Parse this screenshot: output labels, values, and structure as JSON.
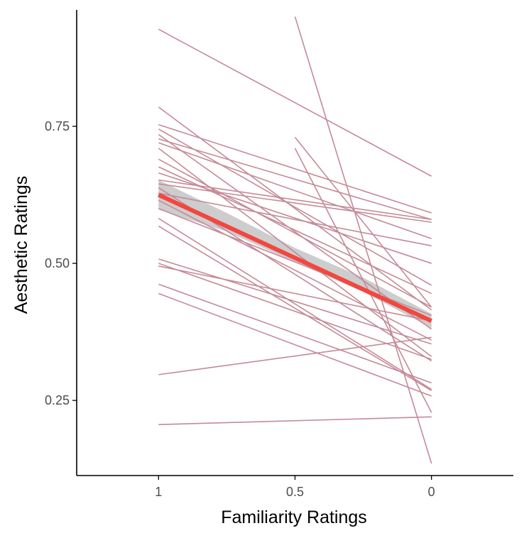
{
  "chart_data": {
    "type": "line",
    "title": "",
    "xlabel": "Familiarity Ratings",
    "ylabel": "Aesthetic Ratings",
    "x_reversed": true,
    "xlim": [
      1.3,
      -0.3
    ],
    "ylim": [
      0.113,
      0.97
    ],
    "x_ticks": [
      {
        "value": 1,
        "label": "1"
      },
      {
        "value": 0.5,
        "label": "0.5"
      },
      {
        "value": 0,
        "label": "0"
      }
    ],
    "y_ticks": [
      {
        "value": 0.25,
        "label": "0.25"
      },
      {
        "value": 0.5,
        "label": "0.50"
      },
      {
        "value": 0.75,
        "label": "0.75"
      }
    ],
    "grid": false,
    "legend": "none",
    "colors": {
      "participant_line": "#c48a98",
      "fit_line": "#f2473f",
      "confidence_band": "#b8b8b8",
      "axis": "#000000",
      "tick_label": "#4d4d4d"
    },
    "participants": [
      {
        "x": [
          1,
          0
        ],
        "y": [
          0.927,
          0.659
        ]
      },
      {
        "x": [
          0.5,
          0
        ],
        "y": [
          0.95,
          0.135
        ]
      },
      {
        "x": [
          1,
          0
        ],
        "y": [
          0.785,
          0.415
        ]
      },
      {
        "x": [
          1,
          0
        ],
        "y": [
          0.753,
          0.592
        ]
      },
      {
        "x": [
          1,
          0
        ],
        "y": [
          0.745,
          0.46
        ]
      },
      {
        "x": [
          1,
          0
        ],
        "y": [
          0.735,
          0.38
        ]
      },
      {
        "x": [
          1,
          0
        ],
        "y": [
          0.727,
          0.58
        ]
      },
      {
        "x": [
          1,
          0
        ],
        "y": [
          0.72,
          0.545
        ]
      },
      {
        "x": [
          1,
          0
        ],
        "y": [
          0.71,
          0.33
        ]
      },
      {
        "x": [
          1,
          0
        ],
        "y": [
          0.69,
          0.42
        ]
      },
      {
        "x": [
          1,
          0
        ],
        "y": [
          0.676,
          0.445
        ]
      },
      {
        "x": [
          1,
          0
        ],
        "y": [
          0.665,
          0.5
        ]
      },
      {
        "x": [
          1,
          0
        ],
        "y": [
          0.652,
          0.58
        ]
      },
      {
        "x": [
          1,
          0
        ],
        "y": [
          0.645,
          0.575
        ]
      },
      {
        "x": [
          1,
          0
        ],
        "y": [
          0.638,
          0.322
        ]
      },
      {
        "x": [
          1,
          0
        ],
        "y": [
          0.628,
          0.532
        ]
      },
      {
        "x": [
          1,
          0
        ],
        "y": [
          0.615,
          0.36
        ]
      },
      {
        "x": [
          1,
          0
        ],
        "y": [
          0.6,
          0.405
        ]
      },
      {
        "x": [
          1,
          0
        ],
        "y": [
          0.582,
          0.27
        ]
      },
      {
        "x": [
          1,
          0
        ],
        "y": [
          0.568,
          0.268
        ]
      },
      {
        "x": [
          1,
          0
        ],
        "y": [
          0.508,
          0.353
        ]
      },
      {
        "x": [
          1,
          0
        ],
        "y": [
          0.5,
          0.325
        ]
      },
      {
        "x": [
          1,
          0
        ],
        "y": [
          0.495,
          0.395
        ]
      },
      {
        "x": [
          1,
          0
        ],
        "y": [
          0.462,
          0.282
        ]
      },
      {
        "x": [
          1,
          0
        ],
        "y": [
          0.445,
          0.258
        ]
      },
      {
        "x": [
          1,
          0
        ],
        "y": [
          0.297,
          0.365
        ]
      },
      {
        "x": [
          1,
          0
        ],
        "y": [
          0.206,
          0.22
        ]
      },
      {
        "x": [
          0.5,
          0
        ],
        "y": [
          0.73,
          0.42
        ]
      },
      {
        "x": [
          0.5,
          0
        ],
        "y": [
          0.71,
          0.228
        ]
      }
    ],
    "fit": {
      "x": [
        1,
        0
      ],
      "y": [
        0.625,
        0.395
      ]
    },
    "confidence_band": {
      "x": [
        1,
        0.75,
        0.5,
        0.25,
        0
      ],
      "lower": [
        0.598,
        0.558,
        0.502,
        0.448,
        0.382
      ],
      "upper": [
        0.652,
        0.592,
        0.528,
        0.474,
        0.408
      ]
    }
  }
}
